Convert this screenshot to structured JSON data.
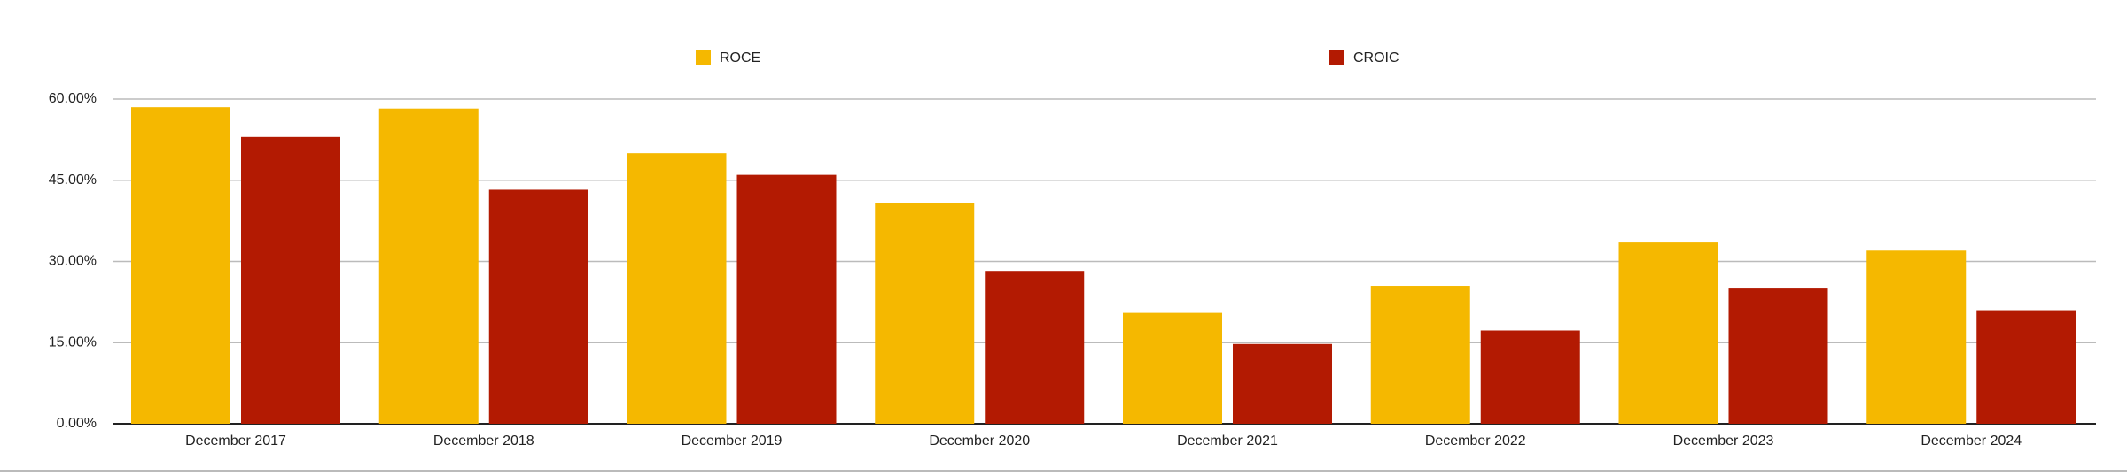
{
  "chart_data": {
    "type": "bar",
    "categories": [
      "December 2017",
      "December 2018",
      "December 2019",
      "December 2020",
      "December 2021",
      "December 2022",
      "December 2023",
      "December 2024"
    ],
    "series": [
      {
        "name": "ROCE",
        "color": "#f5b800",
        "values": [
          58.5,
          58.25,
          50,
          40.75,
          20.5,
          25.5,
          33.5,
          32
        ]
      },
      {
        "name": "CROIC",
        "color": "#b31a02",
        "values": [
          53,
          43.25,
          46,
          28.25,
          14.75,
          17.25,
          25,
          21
        ]
      }
    ],
    "ylim": [
      0,
      60
    ],
    "yticks": [
      {
        "value": 0,
        "label": "0.00%"
      },
      {
        "value": 15,
        "label": "15.00%"
      },
      {
        "value": 30,
        "label": "30.00%"
      },
      {
        "value": 45,
        "label": "45.00%"
      },
      {
        "value": 60,
        "label": "60.00%"
      }
    ],
    "grid": true,
    "legend": "top"
  }
}
